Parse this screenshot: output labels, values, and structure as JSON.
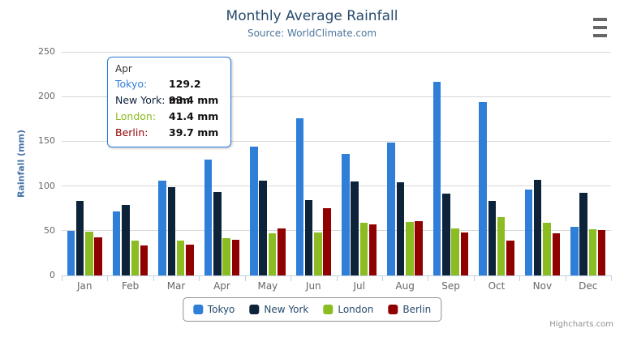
{
  "header": {
    "title": "Monthly Average Rainfall",
    "subtitle": "Source: WorldClimate.com"
  },
  "icons": {
    "context_menu": "hamburger-icon"
  },
  "credits": "Highcharts.com",
  "theme": {
    "title_color": "#274b6d",
    "subtitle_color": "#4d759e",
    "yaxis_title_color": "#4572a7",
    "axis_label_color": "#666666",
    "grid_color": "#d8d8d8",
    "axis_line_color": "#c0d0e0",
    "legend_border_color": "#909090",
    "legend_text_color": "#274b6d",
    "credits_color": "#909090",
    "tooltip_border_color": "#2f7ed8"
  },
  "chart_data": {
    "type": "bar",
    "orientation": "vertical",
    "title": "Monthly Average Rainfall",
    "subtitle": "Source: WorldClimate.com",
    "xlabel": "",
    "ylabel": "Rainfall (mm)",
    "ylim": [
      0,
      250
    ],
    "yticks": [
      0,
      50,
      100,
      150,
      200,
      250
    ],
    "grid": true,
    "legend_position": "bottom",
    "categories": [
      "Jan",
      "Feb",
      "Mar",
      "Apr",
      "May",
      "Jun",
      "Jul",
      "Aug",
      "Sep",
      "Oct",
      "Nov",
      "Dec"
    ],
    "series": [
      {
        "name": "Tokyo",
        "color": "#2f7ed8",
        "values": [
          49.9,
          71.5,
          106.4,
          129.2,
          144.0,
          176.0,
          135.6,
          148.5,
          216.4,
          194.1,
          95.6,
          54.4
        ]
      },
      {
        "name": "New York",
        "color": "#0d233a",
        "values": [
          83.6,
          78.8,
          98.5,
          93.4,
          106.0,
          84.5,
          105.0,
          104.3,
          91.2,
          83.5,
          106.6,
          92.3
        ]
      },
      {
        "name": "London",
        "color": "#8bbc21",
        "values": [
          48.9,
          38.8,
          39.3,
          41.4,
          47.0,
          48.3,
          59.0,
          59.6,
          52.4,
          65.2,
          59.3,
          51.2
        ]
      },
      {
        "name": "Berlin",
        "color": "#910000",
        "values": [
          42.4,
          33.2,
          34.5,
          39.7,
          52.6,
          75.5,
          57.4,
          60.4,
          47.6,
          39.1,
          46.8,
          51.1
        ]
      }
    ]
  },
  "tooltip": {
    "header": "Apr",
    "rows": [
      {
        "label": "Tokyo:",
        "value": "129.2 mm",
        "color": "#2f7ed8"
      },
      {
        "label": "New York:",
        "value": "93.4 mm",
        "color": "#0d233a"
      },
      {
        "label": "London:",
        "value": "41.4 mm",
        "color": "#8bbc21"
      },
      {
        "label": "Berlin:",
        "value": "39.7 mm",
        "color": "#910000"
      }
    ]
  },
  "legend": {
    "items": [
      "Tokyo",
      "New York",
      "London",
      "Berlin"
    ]
  }
}
